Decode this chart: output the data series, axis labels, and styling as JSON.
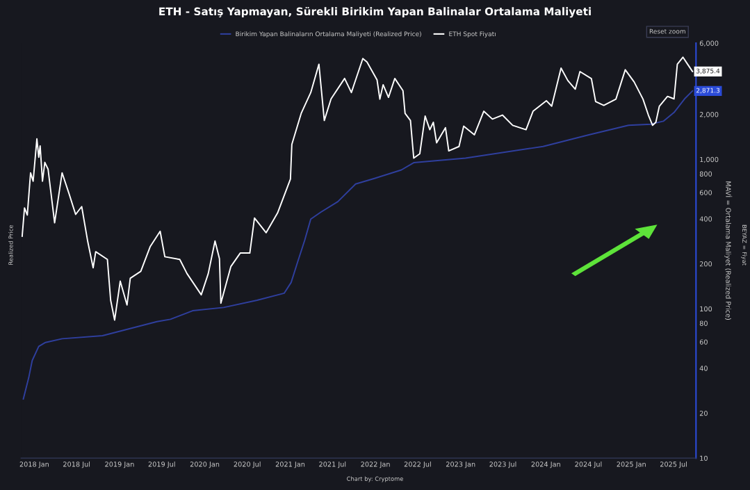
{
  "chart_data": {
    "type": "line",
    "title": "ETH - Satış Yapmayan, Sürekli Birikim Yapan Balinalar Ortalama Maliyeti",
    "ylabel": "MAVİ = Ortalama Maliyet (Realized Price)",
    "annotations": [
      "Realized Price",
      "BEYAZ = Fiyat",
      "Reset zoom",
      "Chart by: Cryptome",
      {
        "text": "3,875.4",
        "x": "2025-09-20",
        "y": 3875.4
      },
      {
        "text": "2,871.3",
        "x": "2025-09-20",
        "y": 2871.3
      }
    ],
    "log": true,
    "grid": false,
    "legend": "top",
    "xlim": [
      "2017-11-05",
      "2025-10-05"
    ],
    "xticks": [
      {
        "value": "2018-01-01",
        "label": "2018 Jan"
      },
      {
        "value": "2018-07-01",
        "label": "2018 Jul"
      },
      {
        "value": "2019-01-01",
        "label": "2019 Jan"
      },
      {
        "value": "2019-07-01",
        "label": "2019 Jul"
      },
      {
        "value": "2020-01-01",
        "label": "2020 Jan"
      },
      {
        "value": "2020-07-01",
        "label": "2020 Jul"
      },
      {
        "value": "2021-01-01",
        "label": "2021 Jan"
      },
      {
        "value": "2021-07-01",
        "label": "2021 Jul"
      },
      {
        "value": "2022-01-01",
        "label": "2022 Jan"
      },
      {
        "value": "2022-07-01",
        "label": "2022 Jul"
      },
      {
        "value": "2023-01-01",
        "label": "2023 Jan"
      },
      {
        "value": "2023-07-01",
        "label": "2023 Jul"
      },
      {
        "value": "2024-01-01",
        "label": "2024 Jan"
      },
      {
        "value": "2024-07-01",
        "label": "2024 Jul"
      },
      {
        "value": "2025-01-01",
        "label": "2025 Jan"
      },
      {
        "value": "2025-07-01",
        "label": "2025 Jul"
      }
    ],
    "ylim": [
      10,
      6000
    ],
    "yticks": [
      10,
      20,
      40,
      60,
      80,
      100,
      200,
      400,
      600,
      800,
      {
        "value": 1000,
        "label": "1,000"
      },
      {
        "value": 2000,
        "label": "2,000"
      },
      {
        "value": 6000,
        "label": "6,000"
      }
    ],
    "series": [
      {
        "name": "Birikim Yapan Balinaların Ortalama Maliyeti (Realized Price)",
        "color": "#2f3f9e",
        "x": [
          "2017-11-15",
          "2017-12-08",
          "2017-12-23",
          "2018-01-20",
          "2018-02-18",
          "2018-04-30",
          "2018-10-20",
          "2019-06-10",
          "2019-08-07",
          "2019-11-10",
          "2020-03-22",
          "2020-08-12",
          "2020-12-06",
          "2021-01-05",
          "2021-02-02",
          "2021-03-04",
          "2021-03-30",
          "2021-05-12",
          "2021-07-24",
          "2021-10-08",
          "2021-12-30",
          "2022-04-22",
          "2022-06-14",
          "2023-01-22",
          "2023-12-20",
          "2024-07-03",
          "2024-12-20",
          "2025-03-25",
          "2025-05-18",
          "2025-07-03",
          "2025-08-17",
          "2025-09-20"
        ],
        "values": [
          24.9,
          34.5,
          45,
          56,
          59.5,
          63,
          66,
          82,
          85,
          97,
          102,
          114,
          127,
          150,
          206,
          287,
          398,
          443,
          521,
          684,
          747,
          850,
          950,
          1020,
          1220,
          1460,
          1690,
          1720,
          1800,
          2060,
          2540,
          2871.3
        ]
      },
      {
        "name": "ETH Spot Fiyatı",
        "color": "#ffffff",
        "x": [
          "2017-11-10",
          "2017-11-20",
          "2017-12-02",
          "2017-12-16",
          "2017-12-27",
          "2018-01-12",
          "2018-01-20",
          "2018-01-26",
          "2018-02-05",
          "2018-02-15",
          "2018-03-01",
          "2018-03-29",
          "2018-04-30",
          "2018-05-29",
          "2018-06-27",
          "2018-07-23",
          "2018-08-18",
          "2018-09-10",
          "2018-09-21",
          "2018-11-10",
          "2018-11-24",
          "2018-12-11",
          "2019-01-04",
          "2019-02-02",
          "2019-02-16",
          "2019-04-02",
          "2019-05-12",
          "2019-06-24",
          "2019-07-14",
          "2019-09-16",
          "2019-10-17",
          "2019-12-17",
          "2020-01-16",
          "2020-02-14",
          "2020-03-04",
          "2020-03-10",
          "2020-04-22",
          "2020-06-01",
          "2020-07-12",
          "2020-08-01",
          "2020-09-20",
          "2020-11-08",
          "2021-01-02",
          "2021-01-08",
          "2021-02-17",
          "2021-03-30",
          "2021-05-04",
          "2021-05-27",
          "2021-06-25",
          "2021-08-22",
          "2021-09-20",
          "2021-11-08",
          "2021-11-26",
          "2022-01-08",
          "2022-01-20",
          "2022-02-03",
          "2022-02-26",
          "2022-03-25",
          "2022-04-29",
          "2022-05-08",
          "2022-05-31",
          "2022-06-14",
          "2022-07-10",
          "2022-08-02",
          "2022-08-22",
          "2022-09-06",
          "2022-09-20",
          "2022-10-28",
          "2022-11-11",
          "2022-12-25",
          "2023-01-14",
          "2023-03-01",
          "2023-04-10",
          "2023-05-17",
          "2023-06-29",
          "2023-08-12",
          "2023-10-08",
          "2023-11-07",
          "2024-01-03",
          "2024-01-26",
          "2024-03-06",
          "2024-04-04",
          "2024-05-06",
          "2024-05-26",
          "2024-07-14",
          "2024-08-01",
          "2024-09-05",
          "2024-10-27",
          "2024-12-06",
          "2025-01-13",
          "2025-02-20",
          "2025-03-15",
          "2025-04-02",
          "2025-04-16",
          "2025-05-01",
          "2025-06-05",
          "2025-07-03",
          "2025-07-17",
          "2025-08-10",
          "2025-08-30",
          "2025-09-20"
        ],
        "values": [
          306,
          473,
          424,
          813,
          714,
          1371,
          1033,
          1231,
          714,
          955,
          859,
          376,
          813,
          594,
          428,
          483,
          281,
          188,
          241,
          214,
          114,
          84,
          153,
          106,
          160,
          178,
          260,
          330,
          223,
          214,
          172,
          124,
          172,
          284,
          216,
          109,
          192,
          236,
          236,
          405,
          323,
          438,
          738,
          1260,
          2030,
          2800,
          4335,
          1820,
          2540,
          3480,
          2800,
          4730,
          4480,
          3400,
          2530,
          3160,
          2600,
          3480,
          2880,
          2030,
          1820,
          1020,
          1090,
          1950,
          1580,
          1770,
          1290,
          1630,
          1140,
          1220,
          1670,
          1460,
          2100,
          1860,
          1980,
          1690,
          1580,
          2100,
          2470,
          2270,
          4080,
          3370,
          2950,
          3870,
          3470,
          2440,
          2300,
          2530,
          3980,
          3300,
          2530,
          1980,
          1690,
          1770,
          2270,
          2640,
          2540,
          4335,
          4830,
          4335,
          3875.4
        ]
      }
    ]
  }
}
